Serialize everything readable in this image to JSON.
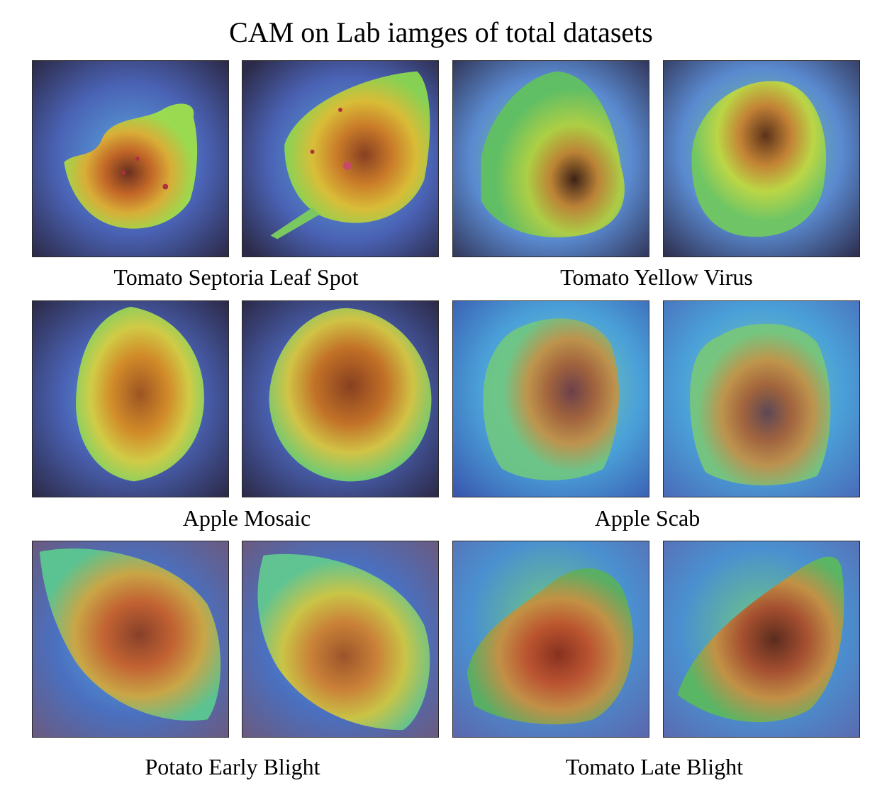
{
  "title": "CAM on Lab iamges of total datasets",
  "groups": [
    {
      "caption": "Tomato Septoria Leaf Spot",
      "images": [
        "leaf-heatmap-image",
        "leaf-heatmap-image"
      ]
    },
    {
      "caption": "Tomato Yellow Virus",
      "images": [
        "leaf-heatmap-image",
        "leaf-heatmap-image"
      ]
    },
    {
      "caption": "Apple Mosaic",
      "images": [
        "leaf-heatmap-image",
        "leaf-heatmap-image"
      ]
    },
    {
      "caption": "Apple Scab",
      "images": [
        "leaf-heatmap-image",
        "leaf-heatmap-image"
      ]
    },
    {
      "caption": "Potato Early Blight",
      "images": [
        "leaf-heatmap-image",
        "leaf-heatmap-image"
      ]
    },
    {
      "caption": "Tomato Late Blight",
      "images": [
        "leaf-heatmap-image",
        "leaf-heatmap-image"
      ]
    }
  ],
  "colors": {
    "heat_cold": "#3a4a9e",
    "heat_cool": "#3fa0d8",
    "heat_mid": "#9ee04a",
    "heat_warm": "#e0a020",
    "heat_hot": "#8a2e1a",
    "background_dark": "#2c2a48"
  }
}
